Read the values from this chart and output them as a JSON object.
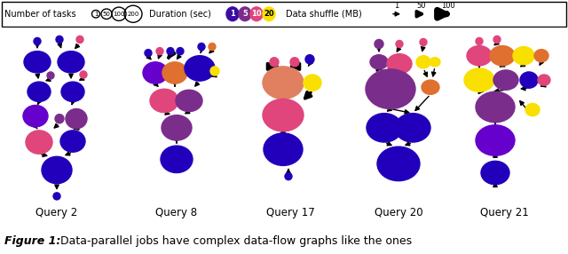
{
  "background_color": "#ffffff",
  "dark_blue": "#2200bb",
  "purple": "#6600cc",
  "med_purple": "#7b2d8b",
  "pink": "#e0457b",
  "yellow": "#f9e000",
  "orange": "#e07030",
  "salmon": "#e08060",
  "queries": [
    "Query 2",
    "Query 8",
    "Query 17",
    "Query 20",
    "Query 21"
  ],
  "legend_task_labels": [
    "1",
    "50",
    "100",
    "200"
  ],
  "legend_dur_labels": [
    "1",
    "5",
    "10",
    "20"
  ],
  "legend_dur_colors": [
    "#3a0ca3",
    "#7b2d8b",
    "#e0457b",
    "#f9e000"
  ],
  "legend_shuffle_labels": [
    "1",
    "50",
    "100"
  ]
}
